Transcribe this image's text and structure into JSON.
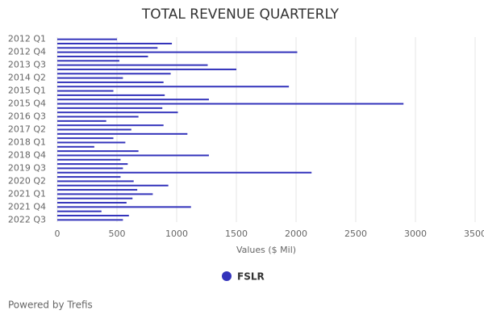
{
  "chart_data": {
    "type": "hbar",
    "title": "TOTAL REVENUE QUARTERLY",
    "x_label": "Values ($ Mil)",
    "categories": [
      "2012 Q1",
      null,
      null,
      "2012 Q4",
      null,
      null,
      "2013 Q3",
      null,
      null,
      "2014 Q2",
      null,
      null,
      "2015 Q1",
      null,
      null,
      "2015 Q4",
      null,
      null,
      "2016 Q3",
      null,
      null,
      "2017 Q2",
      null,
      null,
      "2018 Q1",
      null,
      null,
      "2018 Q4",
      null,
      null,
      "2019 Q3",
      null,
      null,
      "2020 Q2",
      null,
      null,
      "2021 Q1",
      null,
      null,
      "2021 Q4",
      null,
      null,
      "2022 Q3"
    ],
    "series": [
      {
        "name": "FSLR",
        "color": "#3333bb",
        "values": [
          500,
          960,
          840,
          2010,
          760,
          520,
          1260,
          1500,
          950,
          550,
          890,
          1940,
          470,
          900,
          1270,
          2900,
          880,
          1010,
          680,
          410,
          890,
          620,
          1090,
          470,
          570,
          310,
          680,
          1270,
          530,
          590,
          550,
          2130,
          530,
          640,
          930,
          670,
          800,
          630,
          580,
          1120,
          370,
          600,
          550
        ]
      }
    ],
    "xlim": [
      0,
      3500
    ],
    "xticks": [
      0,
      500,
      1000,
      1500,
      2000,
      2500,
      3000,
      3500
    ],
    "grid": true
  },
  "footer": "Powered by Trefis"
}
